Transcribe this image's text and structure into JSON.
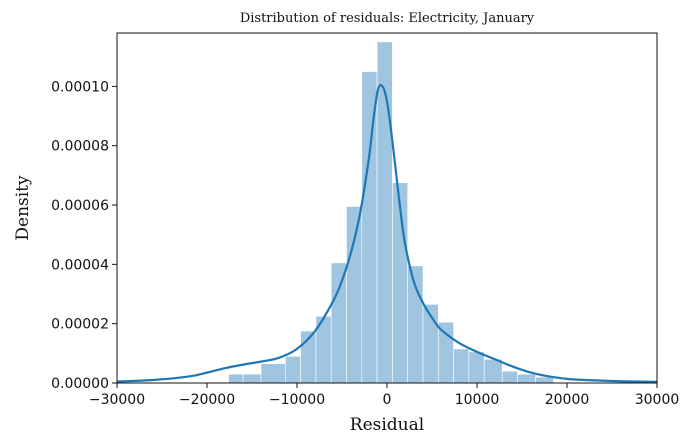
{
  "chart_data": {
    "type": "bar",
    "title": "Distribution of residuals: Electricity, January",
    "xlabel": "Residual",
    "ylabel": "Density",
    "xlim": [
      -30000,
      30000
    ],
    "ylim": [
      0,
      0.000118
    ],
    "x_ticks": [
      -30000,
      -20000,
      -10000,
      0,
      10000,
      20000,
      30000
    ],
    "x_tick_labels": [
      "−30000",
      "−20000",
      "−10000",
      "0",
      "10000",
      "20000",
      "30000"
    ],
    "y_ticks": [
      0,
      2e-05,
      4e-05,
      6e-05,
      8e-05,
      0.0001
    ],
    "y_tick_labels": [
      "0.00000",
      "0.00002",
      "0.00004",
      "0.00006",
      "0.00008",
      "0.00010"
    ],
    "grid": false,
    "histogram": {
      "color": "#9fc5e0",
      "bins": [
        {
          "x0": -17600,
          "x1": -16000,
          "density": 3e-06
        },
        {
          "x0": -16000,
          "x1": -14000,
          "density": 3e-06
        },
        {
          "x0": -14000,
          "x1": -11300,
          "density": 6.5e-06
        },
        {
          "x0": -11300,
          "x1": -9600,
          "density": 9e-06
        },
        {
          "x0": -9600,
          "x1": -7900,
          "density": 1.75e-05
        },
        {
          "x0": -7900,
          "x1": -6200,
          "density": 2.25e-05
        },
        {
          "x0": -6200,
          "x1": -4500,
          "density": 4.05e-05
        },
        {
          "x0": -4500,
          "x1": -2800,
          "density": 5.95e-05
        },
        {
          "x0": -2800,
          "x1": -1100,
          "density": 0.000105
        },
        {
          "x0": -1100,
          "x1": 600,
          "density": 0.000115
        },
        {
          "x0": 600,
          "x1": 2300,
          "density": 6.75e-05
        },
        {
          "x0": 2300,
          "x1": 4000,
          "density": 3.95e-05
        },
        {
          "x0": 4000,
          "x1": 5700,
          "density": 2.65e-05
        },
        {
          "x0": 5700,
          "x1": 7400,
          "density": 2.05e-05
        },
        {
          "x0": 7400,
          "x1": 9100,
          "density": 1.15e-05
        },
        {
          "x0": 9100,
          "x1": 10800,
          "density": 1.05e-05
        },
        {
          "x0": 10800,
          "x1": 12800,
          "density": 8e-06
        },
        {
          "x0": 12800,
          "x1": 14500,
          "density": 4e-06
        },
        {
          "x0": 14500,
          "x1": 16500,
          "density": 3e-06
        },
        {
          "x0": 16500,
          "x1": 18500,
          "density": 2e-06
        }
      ]
    },
    "kde": {
      "color": "#1f77b4",
      "x": [
        -30000,
        -26000,
        -22000,
        -20000,
        -18000,
        -16000,
        -14000,
        -12000,
        -10000,
        -8000,
        -6000,
        -5000,
        -4000,
        -3000,
        -2000,
        -1500,
        -1000,
        -500,
        0,
        500,
        1000,
        1500,
        2000,
        3000,
        4000,
        5000,
        6000,
        8000,
        10000,
        12000,
        14000,
        16000,
        18000,
        20000,
        22000,
        26000,
        30000
      ],
      "y": [
        5e-07,
        1e-06,
        2.2e-06,
        3.5e-06,
        5e-06,
        6.2e-06,
        7.2e-06,
        8.5e-06,
        1.15e-05,
        1.75e-05,
        2.75e-05,
        3.45e-05,
        4.4e-05,
        5.7e-05,
        7.6e-05,
        8.9e-05,
        9.9e-05,
        0.0001,
        9.5e-05,
        8.4e-05,
        7.1e-05,
        5.8e-05,
        4.7e-05,
        3.4e-05,
        2.7e-05,
        2.2e-05,
        1.8e-05,
        1.35e-05,
        1.05e-05,
        8e-06,
        5.5e-06,
        3.5e-06,
        2.2e-06,
        1.4e-06,
        1e-06,
        6e-07,
        4e-07
      ]
    }
  }
}
